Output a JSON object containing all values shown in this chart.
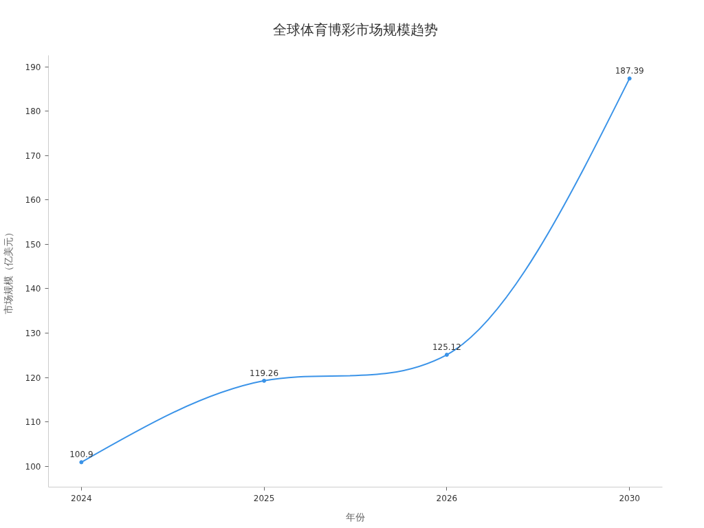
{
  "chart_data": {
    "type": "line",
    "title": "全球体育博彩市场规模趋势",
    "xlabel": "年份",
    "ylabel": "市场规模（亿美元）",
    "categories": [
      "2024",
      "2025",
      "2026",
      "2030"
    ],
    "series": [
      {
        "color": "#3a93e8",
        "values": [
          100.9,
          119.26,
          125.12,
          187.39
        ]
      }
    ],
    "ylim": [
      95.3,
      192.6
    ],
    "yticks": [
      100,
      110,
      120,
      130,
      140,
      150,
      160,
      170,
      180,
      190
    ],
    "marker": "circle",
    "line_style": "solid",
    "data_labels": true
  }
}
